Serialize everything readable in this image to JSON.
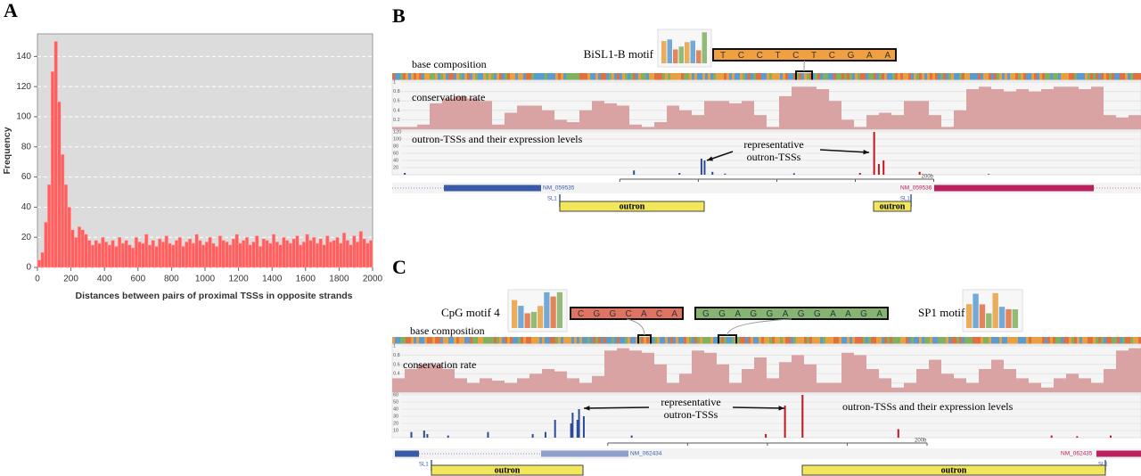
{
  "chart_data": {
    "type": "histogram",
    "panel_label": "A",
    "bins": [
      0,
      20,
      40,
      60,
      80,
      100,
      120,
      140,
      160,
      180,
      200,
      220,
      240,
      260,
      280,
      300,
      320,
      340,
      360,
      380,
      400,
      420,
      440,
      460,
      480,
      500,
      520,
      540,
      560,
      580,
      600,
      620,
      640,
      660,
      680,
      700,
      720,
      740,
      760,
      780,
      800,
      820,
      840,
      860,
      880,
      900,
      920,
      940,
      960,
      980,
      1000,
      1020,
      1040,
      1060,
      1080,
      1100,
      1120,
      1140,
      1160,
      1180,
      1200,
      1220,
      1240,
      1260,
      1280,
      1300,
      1320,
      1340,
      1360,
      1380,
      1400,
      1420,
      1440,
      1460,
      1480,
      1500,
      1520,
      1540,
      1560,
      1580,
      1600,
      1620,
      1640,
      1660,
      1680,
      1700,
      1720,
      1740,
      1760,
      1780,
      1800,
      1820,
      1840,
      1860,
      1880,
      1900,
      1920,
      1940,
      1960,
      1980,
      2000
    ],
    "values": [
      5,
      10,
      30,
      55,
      130,
      150,
      110,
      75,
      55,
      40,
      25,
      20,
      27,
      25,
      22,
      18,
      15,
      18,
      16,
      20,
      17,
      15,
      18,
      14,
      20,
      16,
      18,
      15,
      13,
      20,
      17,
      16,
      22,
      15,
      18,
      14,
      19,
      17,
      21,
      16,
      15,
      18,
      20,
      14,
      17,
      19,
      16,
      22,
      18,
      15,
      17,
      20,
      16,
      14,
      21,
      18,
      17,
      15,
      19,
      22,
      16,
      18,
      20,
      15,
      17,
      21,
      14,
      19,
      18,
      16,
      22,
      17,
      15,
      20,
      18,
      16,
      19,
      21,
      15,
      17,
      22,
      18,
      20,
      16,
      19,
      15,
      21,
      17,
      18,
      20,
      16,
      23,
      18,
      15,
      21,
      17,
      24,
      19,
      16,
      18
    ],
    "color": "#ff5f5f",
    "xlim": [
      0,
      2000
    ],
    "ylim": [
      0,
      155
    ],
    "xticks": [
      0,
      200,
      400,
      600,
      800,
      1000,
      1200,
      1400,
      1600,
      1800,
      2000
    ],
    "yticks": [
      0,
      20,
      40,
      60,
      80,
      100,
      120,
      140
    ],
    "xlabel": "Distances between pairs of proximal TSSs in opposite strands",
    "ylabel": "Frequency",
    "grid": true
  },
  "panels": [
    {
      "label": "B",
      "motifs": [
        {
          "name": "BiSL1-B motif",
          "sequence": "TCCTCTCGAA"
        }
      ],
      "tracks": {
        "base": "base composition",
        "conservation": "conservation rate",
        "tss": "outron-TSSs and their expression levels"
      },
      "annotation": [
        "representative",
        "outron-TSSs"
      ],
      "conservation": {
        "ylim": [
          0,
          1
        ],
        "yticks": [
          0.2,
          0.4,
          0.6,
          0.8,
          1
        ],
        "color": "#d9a3a3",
        "values": [
          0.05,
          0.05,
          0.1,
          0.55,
          0.65,
          0.7,
          0.65,
          0.6,
          0.1,
          0.35,
          0.5,
          0.5,
          0.4,
          0.2,
          0.15,
          0.4,
          0.6,
          0.55,
          0.5,
          0.1,
          0.05,
          0.15,
          0.5,
          0.4,
          0.3,
          0.6,
          0.6,
          0.55,
          0.6,
          0.3,
          0.05,
          0.7,
          0.9,
          0.9,
          0.85,
          0.6,
          0.2,
          0.05,
          0.3,
          0.35,
          0.3,
          0.6,
          0.6,
          0.3,
          0.05,
          0.4,
          0.85,
          0.9,
          0.85,
          0.8,
          0.85,
          0.8,
          0.85,
          0.9,
          0.9,
          0.85,
          0.9,
          0.3,
          0.25,
          0.3
        ]
      },
      "tss": {
        "xlim": [
          0,
          477
        ],
        "ylim": [
          0,
          120
        ],
        "yticks": [
          20,
          40,
          60,
          80,
          100,
          120
        ],
        "series": [
          {
            "color": "#2b4a9a",
            "x": [
              8,
              154,
              183,
              197,
              199,
              204,
              212,
              256,
              380
            ],
            "values": [
              5,
              12,
              5,
              45,
              40,
              8,
              3,
              4,
              2
            ]
          },
          {
            "color": "#c4141e",
            "x": [
              298,
              307,
              310,
              313,
              336
            ],
            "values": [
              5,
              120,
              30,
              40,
              8
            ]
          }
        ]
      },
      "ruler": {
        "start": 145,
        "length": 200,
        "label": "200b"
      },
      "genes": [
        {
          "name": "NM_059535",
          "color": "#3a5aa8"
        },
        {
          "name": "NM_059536",
          "color": "#b8205e"
        }
      ],
      "sl1": [
        "SL1",
        "SL1"
      ],
      "outrons": [
        "outron",
        "outron"
      ]
    },
    {
      "label": "C",
      "motifs": [
        {
          "name": "CpG motif 4",
          "sequence": "CGGCACA"
        },
        {
          "sequence": "GGAGGAGGAAGA"
        },
        {
          "name": "SP1 motif"
        }
      ],
      "tracks": {
        "base": "base composition",
        "conservation": "conservation rate",
        "tss": "outron-TSSs and their expression levels"
      },
      "annotation": [
        "representative",
        "outron-TSSs"
      ],
      "conservation": {
        "ylim": [
          0,
          1
        ],
        "yticks": [
          0.2,
          0.4,
          0.6,
          0.8,
          1
        ],
        "color": "#d9a3a3",
        "values": [
          0.3,
          0.5,
          0.6,
          0.6,
          0.5,
          0.3,
          0.2,
          0.3,
          0.25,
          0.2,
          0.3,
          0.4,
          0.5,
          0.45,
          0.3,
          0.2,
          0.35,
          0.9,
          0.95,
          0.9,
          0.85,
          0.6,
          0.2,
          0.4,
          0.9,
          0.85,
          0.6,
          0.2,
          0.5,
          0.75,
          0.3,
          0.65,
          0.8,
          0.6,
          0.2,
          0.2,
          0.85,
          0.8,
          0.5,
          0.3,
          0.1,
          0.2,
          0.5,
          0.7,
          0.4,
          0.3,
          0.2,
          0.5,
          0.7,
          0.5,
          0.3,
          0.2,
          0.1,
          0.3,
          0.4,
          0.3,
          0.2,
          0.5,
          0.9,
          0.95
        ]
      },
      "tss": {
        "xlim": [
          0,
          469
        ],
        "ylim": [
          0,
          60
        ],
        "yticks": [
          10,
          20,
          30,
          40,
          50,
          60
        ],
        "series": [
          {
            "color": "#2b4a9a",
            "x": [
              12,
              20,
              22,
              35,
              60,
              88,
              96,
              102,
              112,
              113,
              116,
              117,
              120,
              150
            ],
            "values": [
              8,
              10,
              5,
              3,
              8,
              5,
              8,
              25,
              20,
              35,
              25,
              40,
              30,
              3
            ]
          },
          {
            "color": "#c4141e",
            "x": [
              234,
              246,
              257,
              317,
              413,
              429,
              450
            ],
            "values": [
              5,
              45,
              60,
              12,
              3,
              2,
              3
            ]
          }
        ]
      },
      "ruler": {
        "start": 135,
        "length": 200,
        "label": "200b"
      },
      "genes": [
        {
          "name": "NM_062434",
          "color": "#3a5aa8"
        },
        {
          "name": "NM_062435",
          "color": "#b8205e"
        }
      ],
      "sl1": [
        "SL1",
        "SL1"
      ],
      "outrons": [
        "outron",
        "outron"
      ]
    }
  ]
}
